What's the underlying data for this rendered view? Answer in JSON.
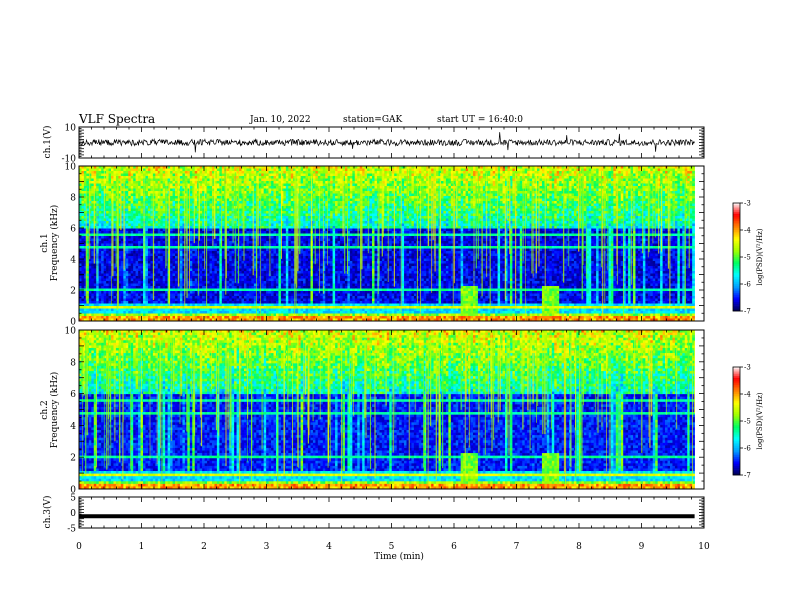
{
  "header": {
    "title": "VLF Spectra",
    "date": "Jan. 10, 2022",
    "station": "station=GAK",
    "start": "start UT = 16:40:0"
  },
  "chart_data": [
    {
      "type": "line",
      "panel": "waveform-ch1",
      "ylabel": "ch.1(V)",
      "ylim": [
        -10,
        10
      ],
      "yticks": [
        "10",
        "-10"
      ],
      "mean": 0,
      "amplitude_range": [
        -2,
        2
      ],
      "color": "#000000"
    },
    {
      "type": "heatmap",
      "panel": "spectrogram-ch1",
      "ylabel": "ch.1\nFrequency (kHz)",
      "ylabel_lines": [
        "ch.1",
        "Frequency (kHz)"
      ],
      "ylim": [
        0,
        10
      ],
      "yticks": [
        "0",
        "2",
        "4",
        "6",
        "8",
        "10"
      ],
      "xlim": [
        0,
        9.85
      ],
      "colorbar": {
        "label": "log(PSD)(V²/Hz)",
        "range": [
          -7,
          -3
        ],
        "ticks": [
          "-3",
          "-4",
          "-5",
          "-6",
          "-7"
        ],
        "colors": [
          "#000050",
          "#0000ff",
          "#00a0ff",
          "#00ffff",
          "#00ff60",
          "#a0ff00",
          "#ffff00",
          "#ff8000",
          "#ff0000",
          "#ffffff"
        ]
      },
      "features": {
        "noise_floor_log_psd": -6.6,
        "upper_band_start_khz": 6.0,
        "bright_bursts_at_min": [
          6.25,
          7.55
        ]
      }
    },
    {
      "type": "heatmap",
      "panel": "spectrogram-ch2",
      "ylabel": "ch.2\nFrequency (kHz)",
      "ylabel_lines": [
        "ch.2",
        "Frequency (kHz)"
      ],
      "ylim": [
        0,
        10
      ],
      "yticks": [
        "0",
        "2",
        "4",
        "6",
        "8",
        "10"
      ],
      "xlim": [
        0,
        9.85
      ],
      "colorbar": {
        "label": "log(PSD)(V²/Hz)",
        "range": [
          -7,
          -3
        ],
        "ticks": [
          "-3",
          "-4",
          "-5",
          "-6",
          "-7"
        ],
        "colors": [
          "#000050",
          "#0000ff",
          "#00a0ff",
          "#00ffff",
          "#00ff60",
          "#a0ff00",
          "#ffff00",
          "#ff8000",
          "#ff0000",
          "#ffffff"
        ]
      },
      "features": {
        "noise_floor_log_psd": -6.5,
        "upper_band_start_khz": 6.0,
        "bright_bursts_at_min": [
          6.25,
          7.55
        ]
      }
    },
    {
      "type": "line",
      "panel": "waveform-ch3",
      "ylabel": "ch.3(V)",
      "ylim": [
        -5,
        5
      ],
      "yticks": [
        "5",
        "0",
        "-5"
      ],
      "value": -1.2,
      "color": "#000000"
    }
  ],
  "xaxis": {
    "label": "Time (min)",
    "range": [
      0,
      10
    ],
    "ticks": [
      "0",
      "1",
      "2",
      "3",
      "4",
      "5",
      "6",
      "7",
      "8",
      "9",
      "10"
    ]
  }
}
